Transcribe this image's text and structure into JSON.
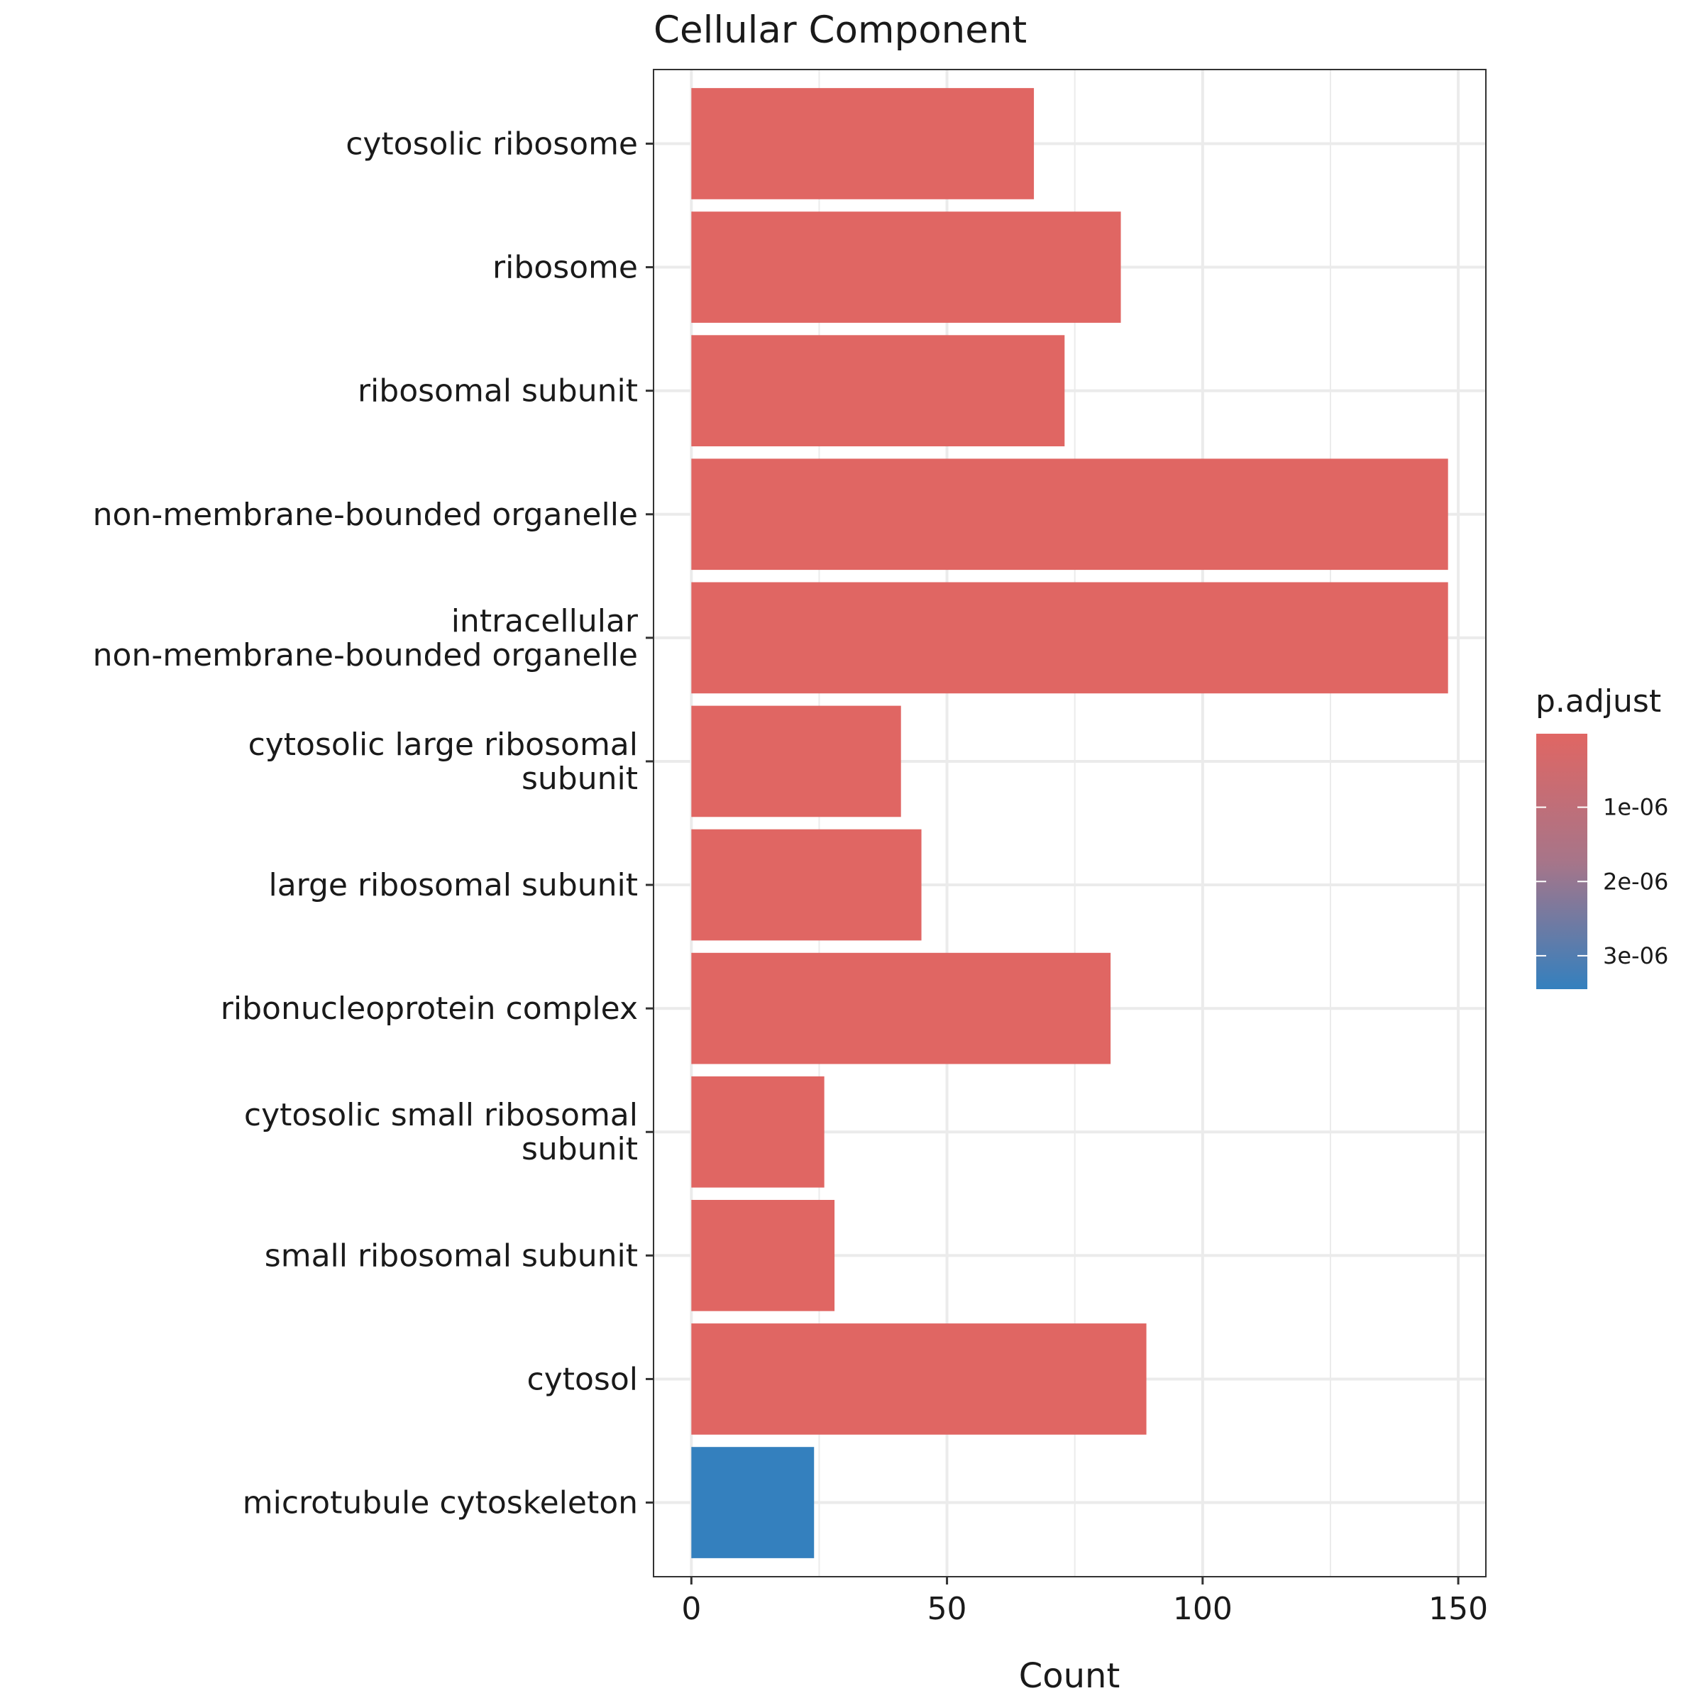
{
  "chart_data": {
    "type": "bar",
    "orientation": "horizontal",
    "title": "Cellular Component",
    "xlabel": "Count",
    "ylabel": "",
    "xlim": [
      -7.4,
      155.4
    ],
    "x_ticks": [
      0,
      50,
      100,
      150
    ],
    "x_tick_labels": [
      "0",
      "50",
      "100",
      "150"
    ],
    "grid": true,
    "categories": [
      "cytosolic ribosome",
      "ribosome",
      "ribosomal subunit",
      "non-membrane-bounded organelle",
      "intracellular non-membrane-bounded organelle",
      "cytosolic large ribosomal subunit",
      "large ribosomal subunit",
      "ribonucleoprotein complex",
      "cytosolic small ribosomal subunit",
      "small ribosomal subunit",
      "cytosol",
      "microtubule cytoskeleton"
    ],
    "category_lines": [
      [
        "cytosolic ribosome"
      ],
      [
        "ribosome"
      ],
      [
        "ribosomal subunit"
      ],
      [
        "non-membrane-bounded organelle"
      ],
      [
        "intracellular",
        "non-membrane-bounded organelle"
      ],
      [
        "cytosolic large ribosomal",
        "subunit"
      ],
      [
        "large ribosomal subunit"
      ],
      [
        "ribonucleoprotein complex"
      ],
      [
        "cytosolic small ribosomal",
        "subunit"
      ],
      [
        "small ribosomal subunit"
      ],
      [
        "cytosol"
      ],
      [
        "microtubule cytoskeleton"
      ]
    ],
    "values": [
      67,
      84,
      73,
      148,
      148,
      41,
      45,
      82,
      26,
      28,
      89,
      24
    ],
    "bar_colors": [
      "#e06663",
      "#e06663",
      "#e06663",
      "#e06663",
      "#e06663",
      "#e06663",
      "#e06663",
      "#e06663",
      "#e06663",
      "#e06663",
      "#e06663",
      "#3480be"
    ],
    "legend": {
      "title": "p.adjust",
      "placement": "right",
      "type": "colorbar",
      "color_low": "#e06663",
      "color_high": "#3480be",
      "range": [
        1e-08,
        3.45e-06
      ],
      "ticks": [
        1e-06,
        2e-06,
        3e-06
      ],
      "tick_labels": [
        "1e-06",
        "2e-06",
        "3e-06"
      ]
    }
  }
}
